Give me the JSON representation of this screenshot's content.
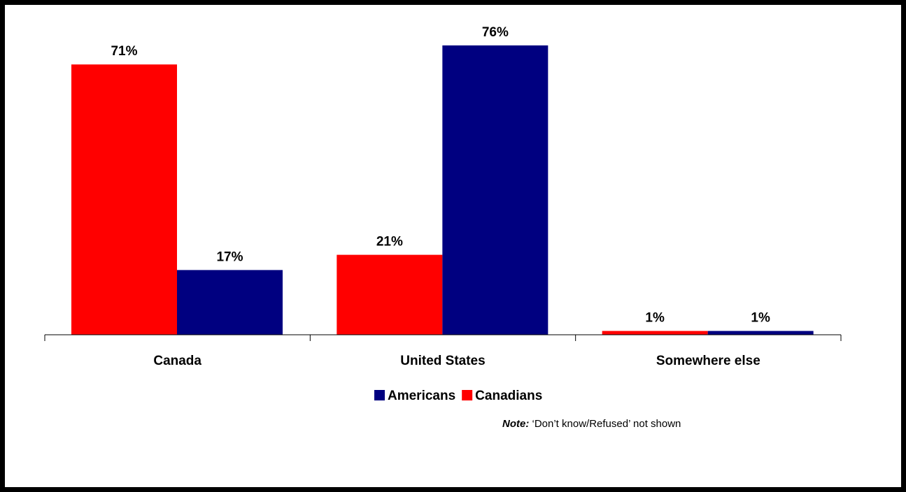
{
  "chart_data": {
    "type": "bar",
    "categories": [
      "Canada",
      "United States",
      "Somewhere else"
    ],
    "series": [
      {
        "name": "Canadians",
        "values": [
          71,
          21,
          1
        ],
        "labels": [
          "71%",
          "21%",
          "1%"
        ],
        "color": "#ff0000"
      },
      {
        "name": "Americans",
        "values": [
          17,
          76,
          1
        ],
        "labels": [
          "17%",
          "76%",
          "1%"
        ],
        "color": "#000080"
      }
    ],
    "legend": {
      "placement": "bottom",
      "order": [
        "Americans",
        "Canadians"
      ]
    },
    "ylim": [
      0,
      76
    ],
    "grid": false
  },
  "note": {
    "prefix": "Note:",
    "text": "‘Don’t know/Refused’ not shown"
  }
}
